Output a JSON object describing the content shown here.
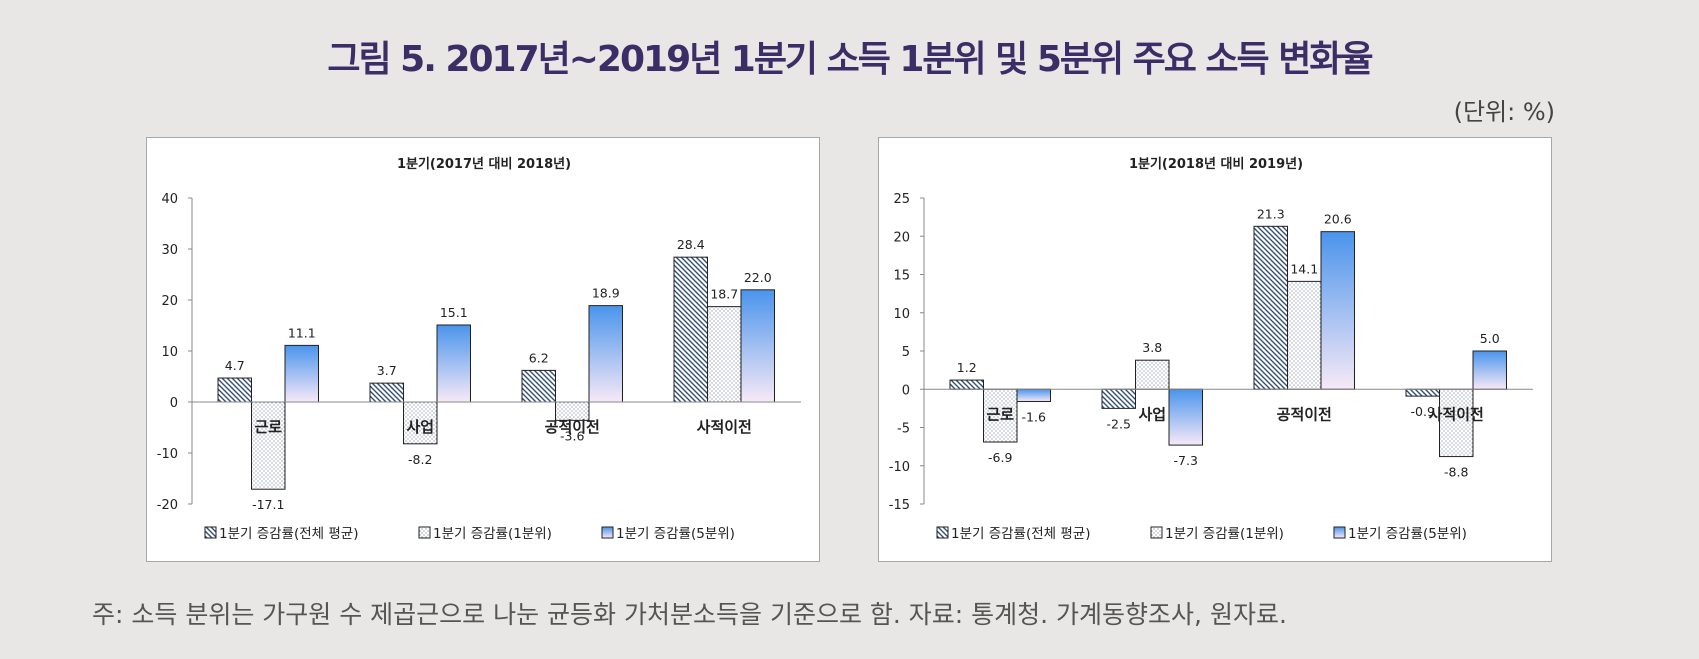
{
  "figure": {
    "title": "그림 5. 2017년~2019년 1분기 소득 1분위 및 5분위 주요 소득 변화율",
    "unit": "(단위: %)",
    "note": "주: 소득 분위는 가구원 수 제곱근으로 나눈 균등화 가처분소득을 기준으로 함. 자료: 통계청. 가계동향조사, 원자료."
  },
  "colors": {
    "background": "#e8e7e6",
    "title": "#3b2d66",
    "hatch": "#2f4f7a",
    "dots": "#3a4a6a",
    "gradient_top": "#4a94ec",
    "gradient_bottom": "#f7e9f7"
  },
  "chart_data": [
    {
      "type": "bar",
      "title": "1분기(2017년 대비 2018년)",
      "categories": [
        "근로",
        "사업",
        "공적이전",
        "사적이전"
      ],
      "series": [
        {
          "name": "1분기 증감률(전체 평균)",
          "values": [
            4.7,
            3.7,
            6.2,
            28.4
          ],
          "labels": [
            "4.7",
            "3.7",
            "6.2",
            "28.4"
          ]
        },
        {
          "name": "1분기 증감률(1분위)",
          "values": [
            -17.1,
            -8.2,
            -3.6,
            18.7
          ],
          "labels": [
            "-17.1",
            "-8.2",
            "-3.6",
            "18.7"
          ]
        },
        {
          "name": "1분기 증감률(5분위)",
          "values": [
            11.1,
            15.1,
            18.9,
            22.0
          ],
          "labels": [
            "11.1",
            "15.1",
            "18.9",
            "22.0"
          ]
        }
      ],
      "yticks": [
        "40",
        "30",
        "20",
        "10",
        "0",
        "-10",
        "-20"
      ],
      "ylim": [
        -20,
        40
      ],
      "grid": false,
      "legend": "bottom"
    },
    {
      "type": "bar",
      "title": "1분기(2018년 대비 2019년)",
      "categories": [
        "근로",
        "사업",
        "공적이전",
        "사적이전"
      ],
      "series": [
        {
          "name": "1분기 증감률(전체 평균)",
          "values": [
            1.2,
            -2.5,
            21.3,
            -0.9
          ],
          "labels": [
            "1.2",
            "-2.5",
            "21.3",
            "-0.9"
          ]
        },
        {
          "name": "1분기 증감률(1분위)",
          "values": [
            -6.9,
            3.8,
            14.1,
            -8.8
          ],
          "labels": [
            "-6.9",
            "3.8",
            "14.1",
            "-8.8"
          ]
        },
        {
          "name": "1분기 증감률(5분위)",
          "values": [
            -1.6,
            -7.3,
            20.6,
            5.0
          ],
          "labels": [
            "-1.6",
            "-7.3",
            "20.6",
            "5.0"
          ]
        }
      ],
      "yticks": [
        "25",
        "20",
        "15",
        "10",
        "5",
        "0",
        "-5",
        "-10",
        "-15"
      ],
      "ylim": [
        -15,
        25
      ],
      "grid": false,
      "legend": "bottom"
    }
  ]
}
